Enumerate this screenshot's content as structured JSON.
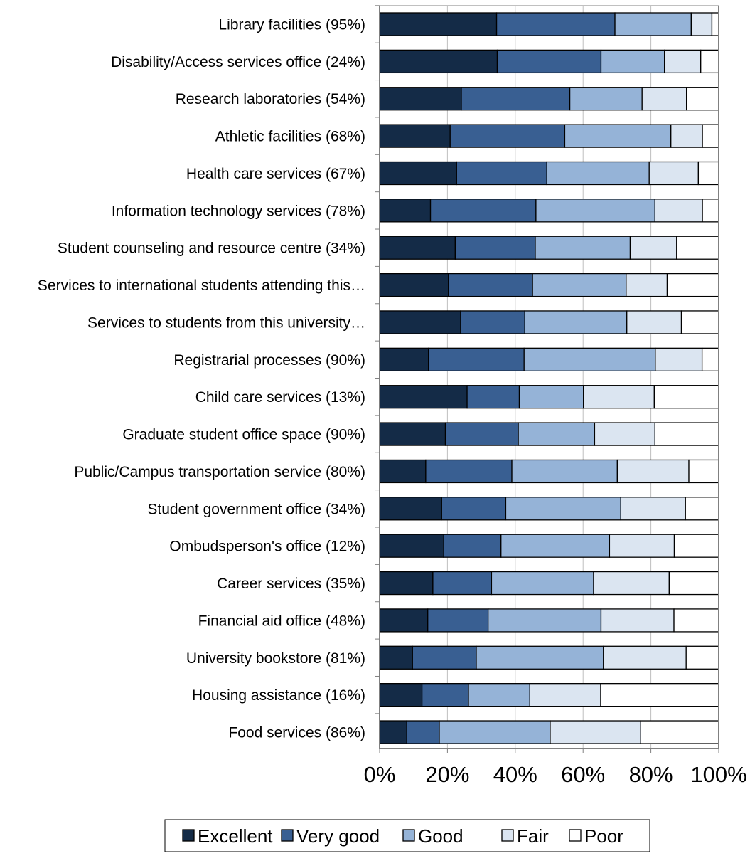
{
  "chart_data": {
    "type": "bar",
    "orientation": "horizontal",
    "stacked": true,
    "normalized": true,
    "title": "",
    "xlabel": "",
    "ylabel": "",
    "xlim": [
      0,
      100
    ],
    "x_ticks": [
      "0%",
      "20%",
      "40%",
      "60%",
      "80%",
      "100%"
    ],
    "grid": true,
    "legend_position": "bottom",
    "categories": [
      "Library facilities (95%)",
      "Disability/Access services office (24%)",
      "Research laboratories (54%)",
      "Athletic facilities (68%)",
      "Health care services (67%)",
      "Information technology services (78%)",
      "Student counseling and resource centre (34%)",
      "Services to international students attending this…",
      "Services to students from this university…",
      "Registrarial processes (90%)",
      "Child care services (13%)",
      "Graduate student office space (90%)",
      "Public/Campus transportation service (80%)",
      "Student government office (34%)",
      "Ombudsperson's office (12%)",
      "Career services (35%)",
      "Financial aid office (48%)",
      "University bookstore (81%)",
      "Housing assistance (16%)",
      "Food services (86%)"
    ],
    "series": [
      {
        "name": "Excellent",
        "color": "#142b47",
        "values": [
          34.5,
          34.7,
          24.1,
          20.8,
          22.7,
          15.0,
          22.3,
          20.3,
          23.9,
          14.4,
          25.8,
          19.4,
          13.6,
          18.3,
          18.9,
          15.7,
          14.2,
          9.7,
          12.5,
          8.0
        ]
      },
      {
        "name": "Very good",
        "color": "#395f92",
        "values": [
          34.9,
          30.6,
          32.0,
          33.8,
          26.6,
          31.1,
          23.6,
          24.8,
          18.9,
          28.2,
          15.4,
          21.5,
          25.4,
          18.9,
          16.9,
          17.3,
          17.8,
          18.8,
          13.7,
          9.6
        ]
      },
      {
        "name": "Good",
        "color": "#95b3d7",
        "values": [
          22.5,
          18.7,
          21.3,
          31.3,
          30.2,
          35.1,
          28.0,
          27.6,
          30.1,
          38.7,
          18.9,
          22.5,
          31.1,
          33.9,
          32.0,
          30.1,
          33.3,
          37.5,
          18.1,
          32.7
        ]
      },
      {
        "name": "Fair",
        "color": "#dbe5f1",
        "values": [
          6.1,
          10.7,
          13.1,
          9.3,
          14.5,
          14.0,
          13.7,
          12.1,
          16.1,
          13.8,
          20.9,
          17.8,
          21.1,
          19.1,
          19.1,
          22.3,
          21.5,
          24.4,
          20.9,
          26.7
        ]
      },
      {
        "name": "Poor",
        "color": "#ffffff",
        "values": [
          2.0,
          5.3,
          9.5,
          4.8,
          6.0,
          4.8,
          12.4,
          15.2,
          11.0,
          4.9,
          19.0,
          18.8,
          8.8,
          9.8,
          13.1,
          14.6,
          13.2,
          9.6,
          34.8,
          23.0
        ]
      }
    ]
  }
}
